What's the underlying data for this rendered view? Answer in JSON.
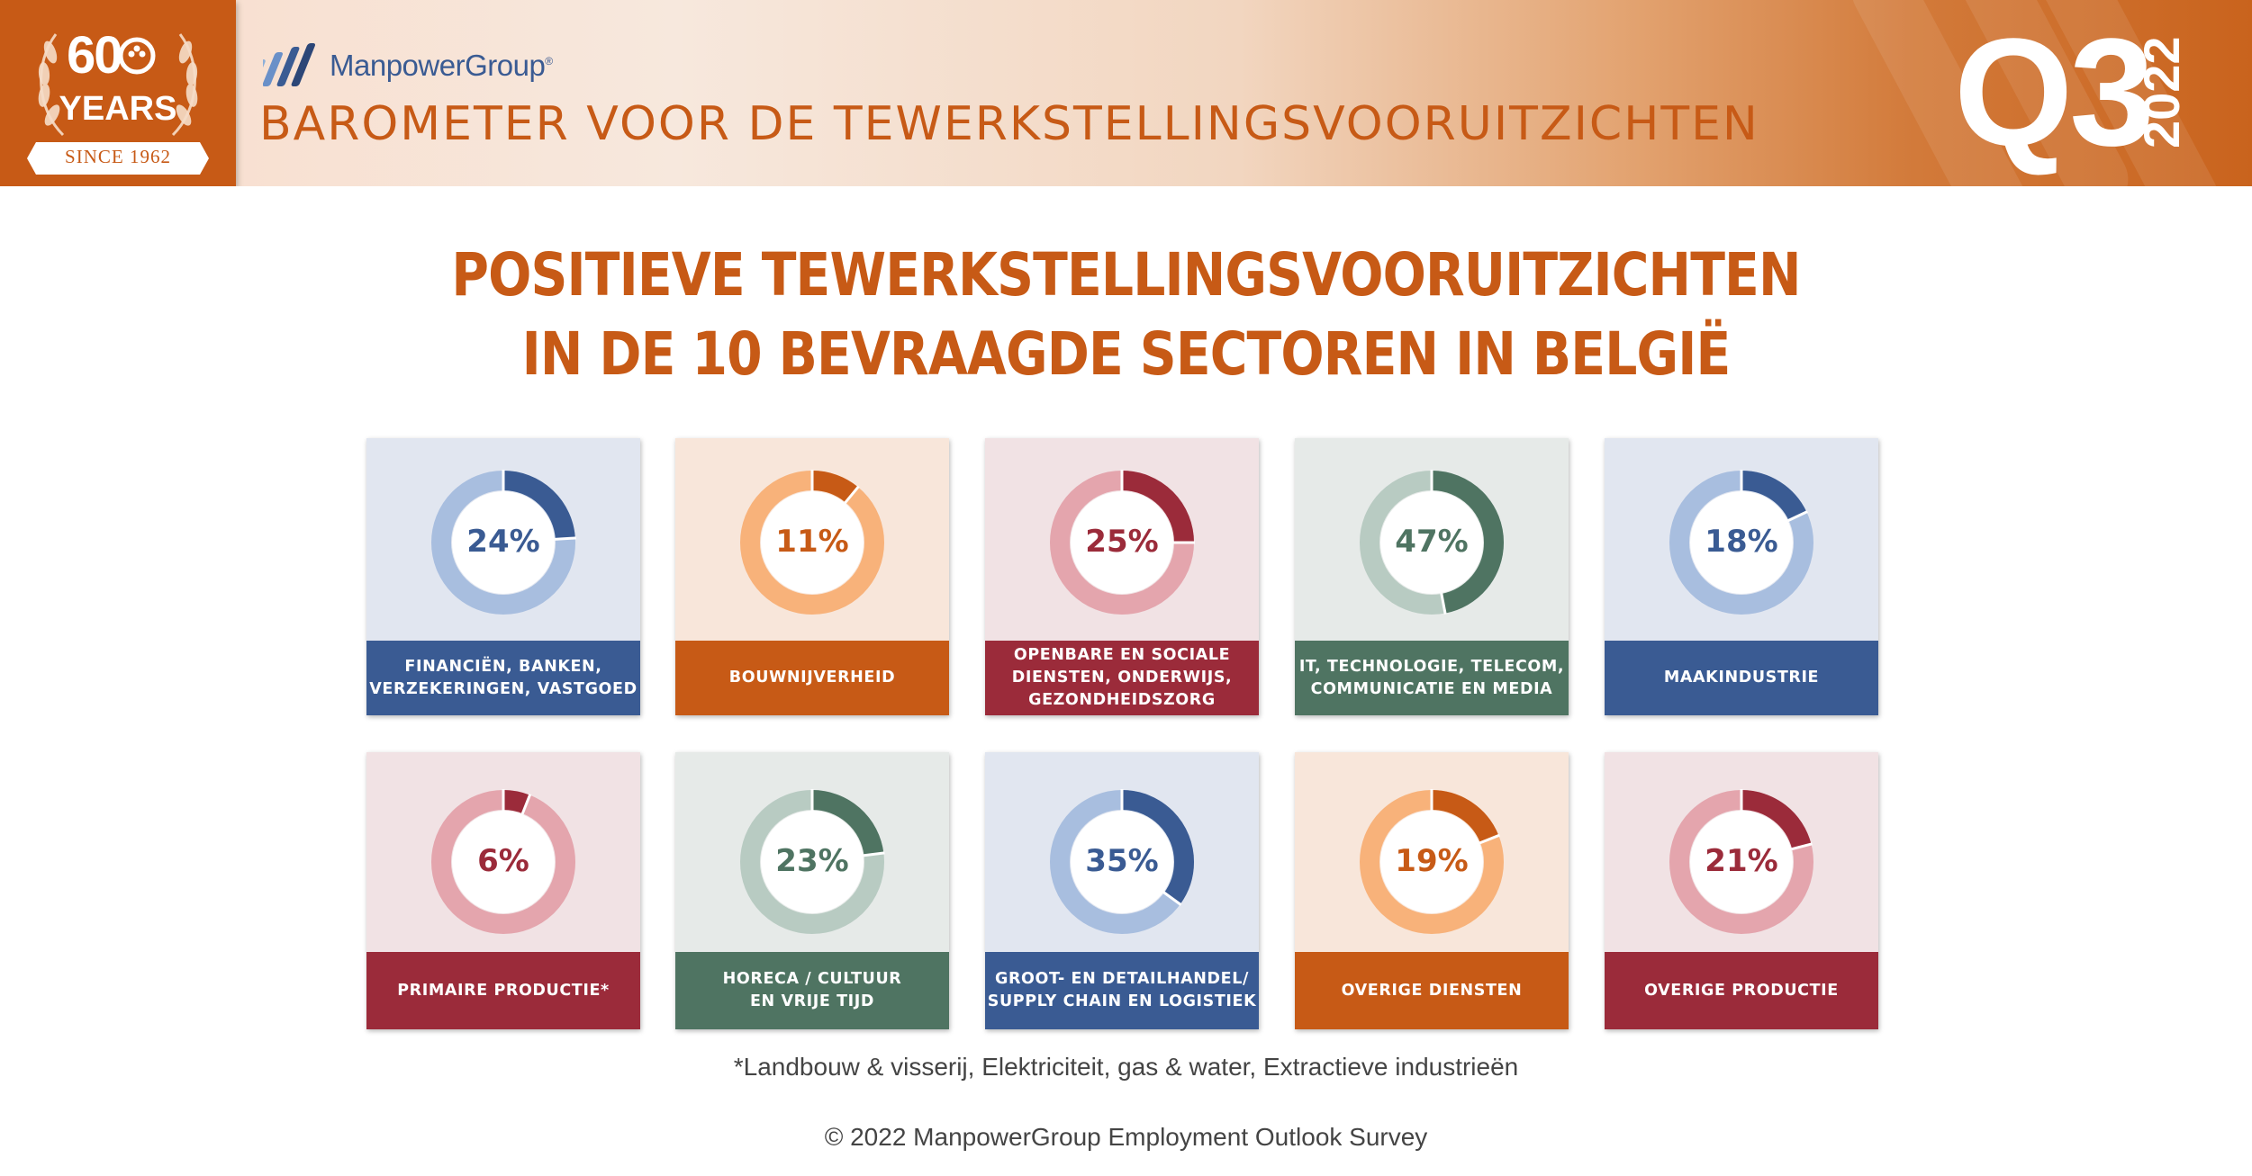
{
  "header": {
    "badge_number": "60",
    "badge_years": "YEARS",
    "badge_since": "SINCE 1962",
    "brand_name": "ManpowerGroup",
    "brand_mark": "®",
    "barometer_title": "BAROMETER VOOR DE TEWERKSTELLINGSVOORUITZICHTEN",
    "quarter": "Q3",
    "year": "2022"
  },
  "title": {
    "line1": "POSITIEVE TEWERKSTELLINGSVOORUITZICHTEN",
    "line2": "IN DE 10 BEVRAAGDE SECTOREN IN BELGIË"
  },
  "footnote": "*Landbouw & visserij, Elektriciteit, gas & water, Extractieve industrieën",
  "copyright": "© 2022 ManpowerGroup Employment Outlook Survey",
  "colors": {
    "orange": "#c75a16",
    "blue": "#3a5b93",
    "crimson": "#9b2b3a",
    "green": "#4f7462"
  },
  "chart_data": {
    "type": "pie",
    "unit": "%",
    "sectors": [
      {
        "label": "FINANCIËN, BANKEN,\nVERZEKERINGEN, VASTGOED",
        "value": 24,
        "display": "24%",
        "theme": "blue"
      },
      {
        "label": "BOUWNIJVERHEID",
        "value": 11,
        "display": "11%",
        "theme": "orange"
      },
      {
        "label": "OPENBARE EN SOCIALE\nDIENSTEN, ONDERWIJS,\nGEZONDHEIDSZORG",
        "value": 25,
        "display": "25%",
        "theme": "crimson"
      },
      {
        "label": "IT, TECHNOLOGIE, TELECOM,\nCOMMUNICATIE EN MEDIA",
        "value": 47,
        "display": "47%",
        "theme": "green"
      },
      {
        "label": "MAAKINDUSTRIE",
        "value": 18,
        "display": "18%",
        "theme": "blue"
      },
      {
        "label": "PRIMAIRE PRODUCTIE*",
        "value": 6,
        "display": "6%",
        "theme": "crimson"
      },
      {
        "label": "HORECA / CULTUUR\nEN VRIJE TIJD",
        "value": 23,
        "display": "23%",
        "theme": "green"
      },
      {
        "label": "GROOT- EN DETAILHANDEL/\nSUPPLY CHAIN EN LOGISTIEK",
        "value": 35,
        "display": "35%",
        "theme": "blue"
      },
      {
        "label": "OVERIGE DIENSTEN",
        "value": 19,
        "display": "19%",
        "theme": "orange"
      },
      {
        "label": "OVERIGE PRODUCTIE",
        "value": 21,
        "display": "21%",
        "theme": "crimson"
      }
    ]
  }
}
